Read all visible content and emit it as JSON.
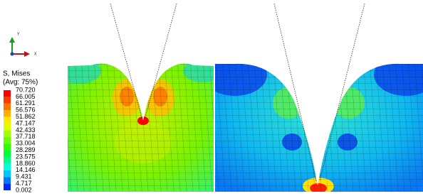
{
  "triad": {
    "y_label": "Y",
    "x_label": "X"
  },
  "legend": {
    "title": "S, Mises",
    "subtitle": "(Avg: 75%)",
    "labels": [
      "70.720",
      "66.005",
      "61.291",
      "56.576",
      "51.862",
      "47.147",
      "42.433",
      "37.718",
      "33.004",
      "28.289",
      "23.575",
      "18.860",
      "14.146",
      "9.431",
      "4.717",
      "0.002"
    ],
    "colors": [
      "#ff0000",
      "#ff3a00",
      "#ff7400",
      "#ffae00",
      "#ffe800",
      "#ddff00",
      "#a2ff00",
      "#68ff00",
      "#2eff00",
      "#00ff3a",
      "#00ff88",
      "#00ffd6",
      "#00c8ff",
      "#0078ff",
      "#0028ff"
    ]
  }
}
